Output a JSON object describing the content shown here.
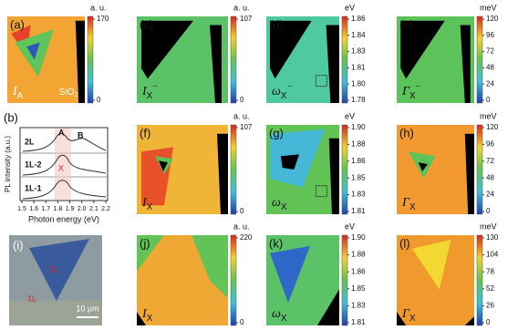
{
  "panels": [
    {
      "label": "(a)",
      "symbol": "I",
      "subscript": "A",
      "unit": "a. u.",
      "ticks": [
        "170",
        "0"
      ],
      "annotation": "SiO",
      "annotation_sub": "2"
    },
    {
      "label": "(c)",
      "symbol": "I",
      "subscript": "X",
      "superscript": "−",
      "unit": "a. u.",
      "ticks": [
        "107",
        "0"
      ]
    },
    {
      "label": "(d)",
      "symbol": "ω",
      "subscript": "X",
      "superscript": "−",
      "unit": "eV",
      "ticks": [
        "1.86",
        "1.84",
        "1.83",
        "1.81",
        "1.80",
        "1.78"
      ]
    },
    {
      "label": "(e)",
      "symbol": "Γ",
      "subscript": "X",
      "superscript": "−",
      "unit": "meV",
      "ticks": [
        "120",
        "96",
        "72",
        "48",
        "24",
        "0"
      ]
    },
    {
      "label": "(f)",
      "symbol": "I",
      "subscript": "X",
      "unit": "a. u.",
      "ticks": [
        "107",
        "0"
      ]
    },
    {
      "label": "(g)",
      "symbol": "ω",
      "subscript": "X",
      "unit": "eV",
      "ticks": [
        "1.90",
        "1.88",
        "1.86",
        "1.85",
        "1.83",
        "1.81"
      ]
    },
    {
      "label": "(h)",
      "symbol": "Γ",
      "subscript": "X",
      "unit": "meV",
      "ticks": [
        "120",
        "96",
        "72",
        "48",
        "24",
        "0"
      ]
    },
    {
      "label": "(j)",
      "symbol": "I",
      "subscript": "X",
      "unit": "a. u.",
      "ticks": [
        "220",
        "0"
      ]
    },
    {
      "label": "(k)",
      "symbol": "ω",
      "subscript": "X",
      "unit": "eV",
      "ticks": [
        "1.90",
        "1.88",
        "1.86",
        "1.85",
        "1.83",
        "1.81"
      ]
    },
    {
      "label": "(l)",
      "symbol": "Γ",
      "subscript": "X",
      "unit": "meV",
      "ticks": [
        "130",
        "104",
        "78",
        "52",
        "26",
        "0"
      ]
    }
  ],
  "spectra": {
    "label": "(b)",
    "y_label": "PL intensity (a.u.)",
    "x_label": "Photon energy (eV)",
    "xticks": [
      "1.5",
      "1.6",
      "1.7",
      "1.8",
      "1.9",
      "2.0",
      "2.1",
      "2.2"
    ],
    "curves": [
      "2L",
      "1L-2",
      "1L-1"
    ],
    "peaks": [
      "A",
      "B",
      "X"
    ]
  },
  "micrograph": {
    "label": "(i)",
    "regions": [
      "2L",
      "1L"
    ],
    "scale_bar": "10 μm"
  }
}
